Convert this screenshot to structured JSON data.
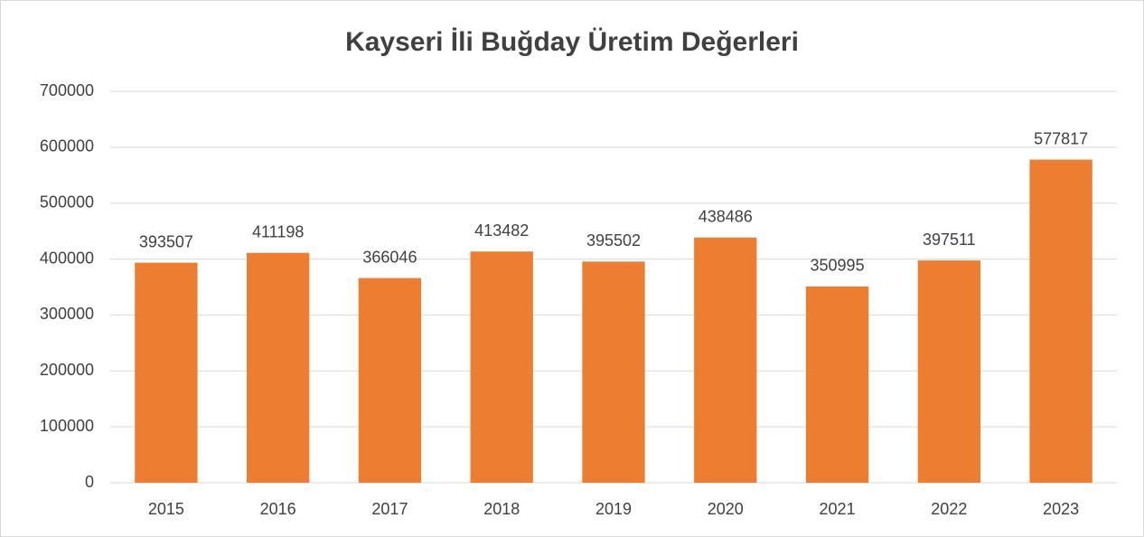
{
  "chart_data": {
    "type": "bar",
    "title": "Kayseri İli Buğday Üretim Değerleri",
    "categories": [
      "2015",
      "2016",
      "2017",
      "2018",
      "2019",
      "2020",
      "2021",
      "2022",
      "2023"
    ],
    "values": [
      393507,
      411198,
      366046,
      413482,
      395502,
      438486,
      350995,
      397511,
      577817
    ],
    "color": "#ed7d31",
    "ylim": [
      0,
      700000
    ],
    "yticks": [
      0,
      100000,
      200000,
      300000,
      400000,
      500000,
      600000,
      700000
    ],
    "grid": true
  }
}
